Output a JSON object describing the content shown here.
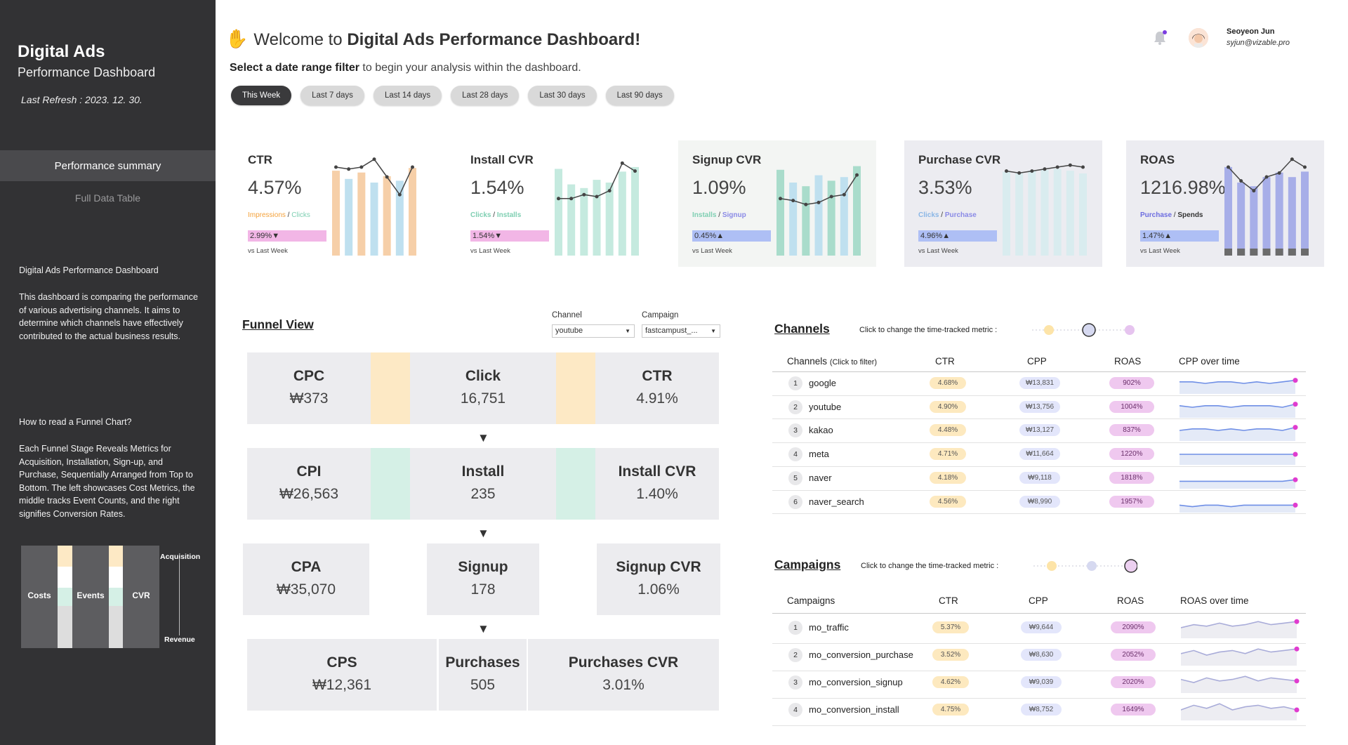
{
  "sidebar": {
    "title": "Digital Ads",
    "subtitle": "Performance Dashboard",
    "refresh_label": "Last Refresh :",
    "refresh_date": "2023. 12. 30.",
    "nav": [
      {
        "label": "Performance summary",
        "active": true
      },
      {
        "label": "Full Data Table",
        "active": false
      }
    ],
    "desc_title": "Digital Ads Performance Dashboard",
    "desc_body": "This dashboard is comparing the performance of various advertising channels. It aims to determine which channels have effectively contributed to the actual business results.",
    "howto_title": "How to read a Funnel Chart?",
    "howto_body": "Each Funnel Stage Reveals Metrics for Acquisition, Installation, Sign-up, and Purchase, Sequentially Arranged from Top to Bottom. The left showcases Cost Metrics, the middle tracks Event Counts, and the right signifies Conversion Rates.",
    "mini_funnel": {
      "col_costs": "Costs",
      "col_events": "Events",
      "col_cvr": "CVR",
      "top_label": "Acquisition",
      "bottom_label": "Revenue"
    }
  },
  "header": {
    "welcome_prefix": "Welcome to",
    "welcome_bold": "Digital Ads Performance Dashboard!",
    "instruction_bold": "Select a date range filter",
    "instruction_rest": "to begin your analysis within the dashboard.",
    "date_filters": [
      "This Week",
      "Last 7 days",
      "Last 14 days",
      "Last 28 days",
      "Last 30 days",
      "Last 90 days"
    ],
    "active_filter": "This Week",
    "user_name": "Seoyeon Jun",
    "user_email": "syjun@vizable.pro"
  },
  "kpis": [
    {
      "name": "CTR",
      "value": "4.57%",
      "formula_a": "Impressions",
      "formula_sep": " / ",
      "formula_b": "Clicks",
      "delta": "2.99%▼",
      "vs": "vs Last Week",
      "color_a": "#f4a23b",
      "color_b": "#7fcfb2",
      "delta_color": "#f2b6e6",
      "bar_color": "#f6cfa8",
      "bar_alt": "#bfe0ef",
      "card_bg": "#ffffff"
    },
    {
      "name": "Install CVR",
      "value": "1.54%",
      "formula_a": "Clicks",
      "formula_sep": " / ",
      "formula_b": "Installs",
      "delta": "1.54%▼",
      "vs": "vs Last Week",
      "color_a": "#7fcfb2",
      "color_b": "#7fcfb2",
      "delta_color": "#f2b6e6",
      "bar_color": "#c5eadf",
      "bar_alt": "#c5eadf",
      "card_bg": "#ffffff"
    },
    {
      "name": "Signup CVR",
      "value": "1.09%",
      "formula_a": "Installs",
      "formula_sep": " / ",
      "formula_b": "Signup",
      "delta": "0.45%▲",
      "vs": "vs Last Week",
      "color_a": "#7fcfb2",
      "color_b": "#8a8ae6",
      "delta_color": "#aebff5",
      "bar_color": "#a9dccb",
      "bar_alt": "#bfe0ef",
      "card_bg": "#f3f5f3"
    },
    {
      "name": "Purchase CVR",
      "value": "3.53%",
      "formula_a": "Clicks",
      "formula_sep": " / ",
      "formula_b": "Purchase",
      "delta": "4.96%▲",
      "vs": "vs Last Week",
      "color_a": "#8ab6e6",
      "color_b": "#8a8ae6",
      "delta_color": "#aebff5",
      "bar_color": "#d9ecef",
      "bar_alt": "#d9ecef",
      "card_bg": "#ececf1"
    },
    {
      "name": "ROAS",
      "value": "1216.98%",
      "formula_a": "Purchase",
      "formula_sep": " / ",
      "formula_b": "Spends",
      "delta": "1.47%▲",
      "vs": "vs Last Week",
      "color_a": "#6d6de0",
      "color_b": "#333333",
      "delta_color": "#aebff5",
      "bar_color": "#a7aee8",
      "bar_alt": "#a7aee8",
      "card_bg": "#ececf1"
    }
  ],
  "funnel": {
    "title": "Funnel View",
    "channel_label": "Channel",
    "channel_value": "youtube",
    "campaign_label": "Campaign",
    "campaign_value": "fastcampust_...",
    "rows": [
      {
        "cost_label": "CPC",
        "cost_value": "₩373",
        "event_label": "Click",
        "event_value": "16,751",
        "cvr_label": "CTR",
        "cvr_value": "4.91%",
        "connector": "#fde9c5"
      },
      {
        "cost_label": "CPI",
        "cost_value": "₩26,563",
        "event_label": "Install",
        "event_value": "235",
        "cvr_label": "Install CVR",
        "cvr_value": "1.40%",
        "connector": "#d5f0e6"
      },
      {
        "cost_label": "CPA",
        "cost_value": "₩35,070",
        "event_label": "Signup",
        "event_value": "178",
        "cvr_label": "Signup CVR",
        "cvr_value": "1.06%",
        "connector": "#ffffff"
      },
      {
        "cost_label": "CPS",
        "cost_value": "₩12,361",
        "event_label": "Purchases",
        "event_value": "505",
        "cvr_label": "Purchases CVR",
        "cvr_value": "3.01%",
        "connector": "#ececef"
      }
    ]
  },
  "channels": {
    "title": "Channels",
    "hint": "Click to change the time-tracked metric :",
    "col_name": "Channels",
    "col_name_hint": "(Click to filter)",
    "col_ctr": "CTR",
    "col_cpp": "CPP",
    "col_roas": "ROAS",
    "col_trend": "CPP over time",
    "rows": [
      {
        "rank": "1",
        "name": "google",
        "ctr": "4.68%",
        "cpp": "₩13,831",
        "roas": "902%",
        "trend": [
          6,
          6,
          5,
          6,
          6,
          5,
          6,
          5,
          6,
          7
        ]
      },
      {
        "rank": "2",
        "name": "youtube",
        "ctr": "4.90%",
        "cpp": "₩13,756",
        "roas": "1004%",
        "trend": [
          6,
          5,
          6,
          6,
          5,
          6,
          6,
          6,
          5,
          7
        ]
      },
      {
        "rank": "3",
        "name": "kakao",
        "ctr": "4.48%",
        "cpp": "₩13,127",
        "roas": "837%",
        "trend": [
          5,
          6,
          6,
          5,
          6,
          5,
          6,
          6,
          5,
          7
        ]
      },
      {
        "rank": "4",
        "name": "meta",
        "ctr": "4.71%",
        "cpp": "₩11,664",
        "roas": "1220%",
        "trend": [
          5,
          5,
          5,
          5,
          5,
          5,
          5,
          5,
          5,
          5
        ]
      },
      {
        "rank": "5",
        "name": "naver",
        "ctr": "4.18%",
        "cpp": "₩9,118",
        "roas": "1818%",
        "trend": [
          3,
          3,
          3,
          3,
          3,
          3,
          3,
          3,
          3,
          4
        ]
      },
      {
        "rank": "6",
        "name": "naver_search",
        "ctr": "4.56%",
        "cpp": "₩8,990",
        "roas": "1957%",
        "trend": [
          3,
          2,
          3,
          3,
          2,
          3,
          3,
          3,
          3,
          3
        ]
      }
    ]
  },
  "campaigns": {
    "title": "Campaigns",
    "hint": "Click to change the time-tracked metric :",
    "col_name": "Campaigns",
    "col_ctr": "CTR",
    "col_cpp": "CPP",
    "col_roas": "ROAS",
    "col_trend": "ROAS over time",
    "rows": [
      {
        "rank": "1",
        "name": "mo_traffic",
        "ctr": "5.37%",
        "cpp": "₩9,644",
        "roas": "2090%",
        "trend": [
          5,
          7,
          6,
          8,
          6,
          7,
          9,
          7,
          8,
          9
        ]
      },
      {
        "rank": "2",
        "name": "mo_conversion_purchase",
        "ctr": "3.52%",
        "cpp": "₩8,630",
        "roas": "2052%",
        "trend": [
          6,
          8,
          5,
          7,
          8,
          6,
          9,
          7,
          8,
          9
        ]
      },
      {
        "rank": "3",
        "name": "mo_conversion_signup",
        "ctr": "4.62%",
        "cpp": "₩9,039",
        "roas": "2020%",
        "trend": [
          7,
          5,
          8,
          6,
          7,
          9,
          6,
          8,
          7,
          6
        ]
      },
      {
        "rank": "4",
        "name": "mo_conversion_install",
        "ctr": "4.75%",
        "cpp": "₩8,752",
        "roas": "1649%",
        "trend": [
          5,
          8,
          6,
          9,
          5,
          7,
          8,
          6,
          7,
          5
        ]
      }
    ]
  },
  "colors": {
    "sidebar_bg": "#323234",
    "accent_dark": "#3a3a3c",
    "ctr_chip": "#fde9bf",
    "cpp_chip": "#e3e6fb",
    "roas_chip": "#efc8ef",
    "spark_line": "#6f8fe6",
    "spark_end": "#e03ccf"
  }
}
